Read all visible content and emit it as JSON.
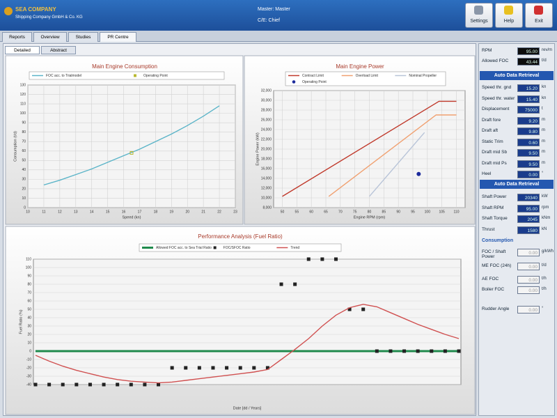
{
  "ui": {
    "header": {
      "company": "SEA COMPANY",
      "subtitle": "Shipping Company GmbH & Co. KG",
      "master": "Master: Master",
      "chief": "C/E: Chief",
      "buttons": [
        "Settings",
        "Help",
        "Exit"
      ]
    },
    "tabs": [
      "Reports",
      "Overview",
      "Studies",
      "PR Centre"
    ],
    "subtabs": [
      "Detailed",
      "Abstract"
    ],
    "sidebar": {
      "top": [
        {
          "label": "RPM",
          "value": "95.00",
          "unit": "rev/m"
        },
        {
          "label": "Allowed FOC",
          "value": "43.44",
          "unit": "t/d"
        }
      ],
      "section1": {
        "title": "Auto Data Retrieval",
        "rows": [
          {
            "label": "Speed thr. gnd",
            "value": "15.20",
            "unit": "kn"
          },
          {
            "label": "Speed thr. water",
            "value": "15.40",
            "unit": "kn"
          },
          {
            "label": "Displacement",
            "value": "75000",
            "unit": "t"
          },
          {
            "label": "Draft fore",
            "value": "9.20",
            "unit": "m"
          },
          {
            "label": "Draft aft",
            "value": "9.80",
            "unit": "m"
          },
          {
            "label": "Static Trim",
            "value": "0.60",
            "unit": "m"
          },
          {
            "label": "Draft mid Sb",
            "value": "9.50",
            "unit": "m"
          },
          {
            "label": "Draft mid Ps",
            "value": "9.50",
            "unit": "m"
          },
          {
            "label": "Heel",
            "value": "0.00",
            "unit": "°"
          }
        ]
      },
      "section2": {
        "title": "Auto Data Retrieval",
        "rows": [
          {
            "label": "Shaft Power",
            "value": "20340",
            "unit": "kW"
          },
          {
            "label": "Shaft RPM",
            "value": "95.00",
            "unit": "rpm"
          },
          {
            "label": "Shaft Torque",
            "value": "2045",
            "unit": "kNm"
          },
          {
            "label": "Thrust",
            "value": "1580",
            "unit": "kN"
          }
        ]
      },
      "consumption": {
        "title": "Consumption",
        "rows": [
          {
            "label": "FOC / Shaft Power",
            "value": "0.00",
            "unit": "g/kWh"
          },
          {
            "label": "ME FOC (24h)",
            "value": "0.00",
            "unit": "t/d"
          },
          {
            "label": "AE FOC",
            "value": "0.00",
            "unit": "t/h"
          },
          {
            "label": "Boiler FOC",
            "value": "0.00",
            "unit": "t/h"
          },
          {
            "label": "Rudder Angle",
            "value": "0.00",
            "unit": "°"
          }
        ]
      }
    }
  },
  "chart_data": [
    {
      "type": "line",
      "title": "Main Engine Consumption",
      "x_label": "Speed (kn)",
      "y_label": "Consumption (t/d)",
      "xlim": [
        10,
        23
      ],
      "xticks": [
        10,
        11,
        12,
        13,
        14,
        15,
        16,
        17,
        18,
        19,
        20,
        21,
        22,
        23
      ],
      "ylim": [
        0,
        130
      ],
      "yticks": [
        0,
        10,
        20,
        30,
        40,
        50,
        60,
        70,
        80,
        90,
        100,
        110,
        120,
        130
      ],
      "grid": true,
      "series": [
        {
          "name": "FOC acc. to Trialmodel",
          "color": "#5ab4c8",
          "mode": "line",
          "x": [
            11,
            12,
            13,
            14,
            15,
            16,
            17,
            18,
            19,
            20,
            21,
            22
          ],
          "values": [
            24,
            29,
            35,
            41,
            48,
            55,
            62,
            70,
            78,
            87,
            97,
            108
          ]
        },
        {
          "name": "Operating Point",
          "color": "#b8b830",
          "mode": "points",
          "marker": "square",
          "x": [
            16.5
          ],
          "values": [
            58
          ]
        }
      ]
    },
    {
      "type": "line",
      "title": "Main Engine Power",
      "x_label": "Engine RPM (rpm)",
      "y_label": "Engine Power (kW)",
      "xlim": [
        47,
        113
      ],
      "xticks": [
        50,
        55,
        60,
        65,
        70,
        75,
        80,
        85,
        90,
        95,
        100,
        105,
        110
      ],
      "ylim": [
        8000,
        32000
      ],
      "yticks": [
        {
          "value": 8000,
          "label": "8,000"
        },
        {
          "value": 10000,
          "label": "10,000"
        },
        {
          "value": 12000,
          "label": "12,000"
        },
        {
          "value": 14000,
          "label": "14,000"
        },
        {
          "value": 16000,
          "label": "16,000"
        },
        {
          "value": 18000,
          "label": "18,000"
        },
        {
          "value": 20000,
          "label": "20,000"
        },
        {
          "value": 22000,
          "label": "22,000"
        },
        {
          "value": 24000,
          "label": "24,000"
        },
        {
          "value": 26000,
          "label": "26,000"
        },
        {
          "value": 28000,
          "label": "28,000"
        },
        {
          "value": 30000,
          "label": "30,000"
        },
        {
          "value": 32000,
          "label": "32,000"
        }
      ],
      "grid": true,
      "series": [
        {
          "name": "Contract Limit",
          "color": "#c0392b",
          "mode": "line",
          "x": [
            50,
            104,
            110
          ],
          "values": [
            10300,
            29800,
            29800
          ]
        },
        {
          "name": "Overload Limit",
          "color": "#f0a070",
          "mode": "line",
          "x": [
            66,
            103,
            110
          ],
          "values": [
            10300,
            27000,
            27000
          ]
        },
        {
          "name": "Nominal Propeller",
          "color": "#b8c4d8",
          "mode": "line",
          "x": [
            80,
            99
          ],
          "values": [
            10300,
            23400
          ]
        },
        {
          "name": "Operating Point",
          "color": "#1c2b9c",
          "mode": "points",
          "marker": "circle",
          "x": [
            97
          ],
          "values": [
            14900
          ]
        }
      ]
    },
    {
      "type": "line",
      "title": "Performance Analysis (Fuel Ratio)",
      "x_label": "Date [dd / Years]",
      "y_label": "Fuel Ratio (%)",
      "categories": [
        null,
        null,
        null,
        null,
        null,
        null,
        null,
        null,
        null,
        null,
        null,
        null,
        null,
        null,
        null,
        null,
        null,
        null,
        null,
        null,
        null,
        null,
        null,
        null,
        null,
        null,
        null,
        null,
        null,
        null,
        null,
        null
      ],
      "ylim": [
        -40,
        110
      ],
      "yticks": [
        -40,
        -30,
        -20,
        -10,
        0,
        10,
        20,
        30,
        40,
        50,
        60,
        70,
        80,
        90,
        100,
        110
      ],
      "grid": true,
      "series": [
        {
          "name": "Allowed FOC acc. to Sea Trial Ratio",
          "color": "#1f8a4c",
          "mode": "line",
          "width": 3,
          "values": [
            0,
            0,
            0,
            0,
            0,
            0,
            0,
            0,
            0,
            0,
            0,
            0,
            0,
            0,
            0,
            0,
            0,
            0,
            0,
            0,
            0,
            0,
            0,
            0,
            0,
            0,
            0,
            0,
            0,
            0,
            0,
            0
          ]
        },
        {
          "name": "FOC/SFOC Ratio",
          "color": "#222222",
          "mode": "points",
          "marker": "square",
          "values": [
            -40,
            -40,
            -40,
            -40,
            -40,
            -40,
            -40,
            -40,
            -40,
            -40,
            -20,
            -20,
            -20,
            -20,
            -20,
            -20,
            -20,
            -20,
            80,
            80,
            110,
            110,
            110,
            50,
            50,
            0,
            0,
            0,
            0,
            0,
            0,
            0
          ]
        },
        {
          "name": "Trend",
          "color": "#d05050",
          "mode": "line",
          "values": [
            -5,
            -12,
            -18,
            -23,
            -27,
            -31,
            -34,
            -36,
            -37,
            -38,
            -37,
            -35,
            -33,
            -31,
            -29,
            -27,
            -25,
            -22,
            -10,
            2,
            15,
            30,
            43,
            52,
            56,
            53,
            46,
            39,
            32,
            26,
            20,
            15
          ]
        }
      ]
    }
  ]
}
